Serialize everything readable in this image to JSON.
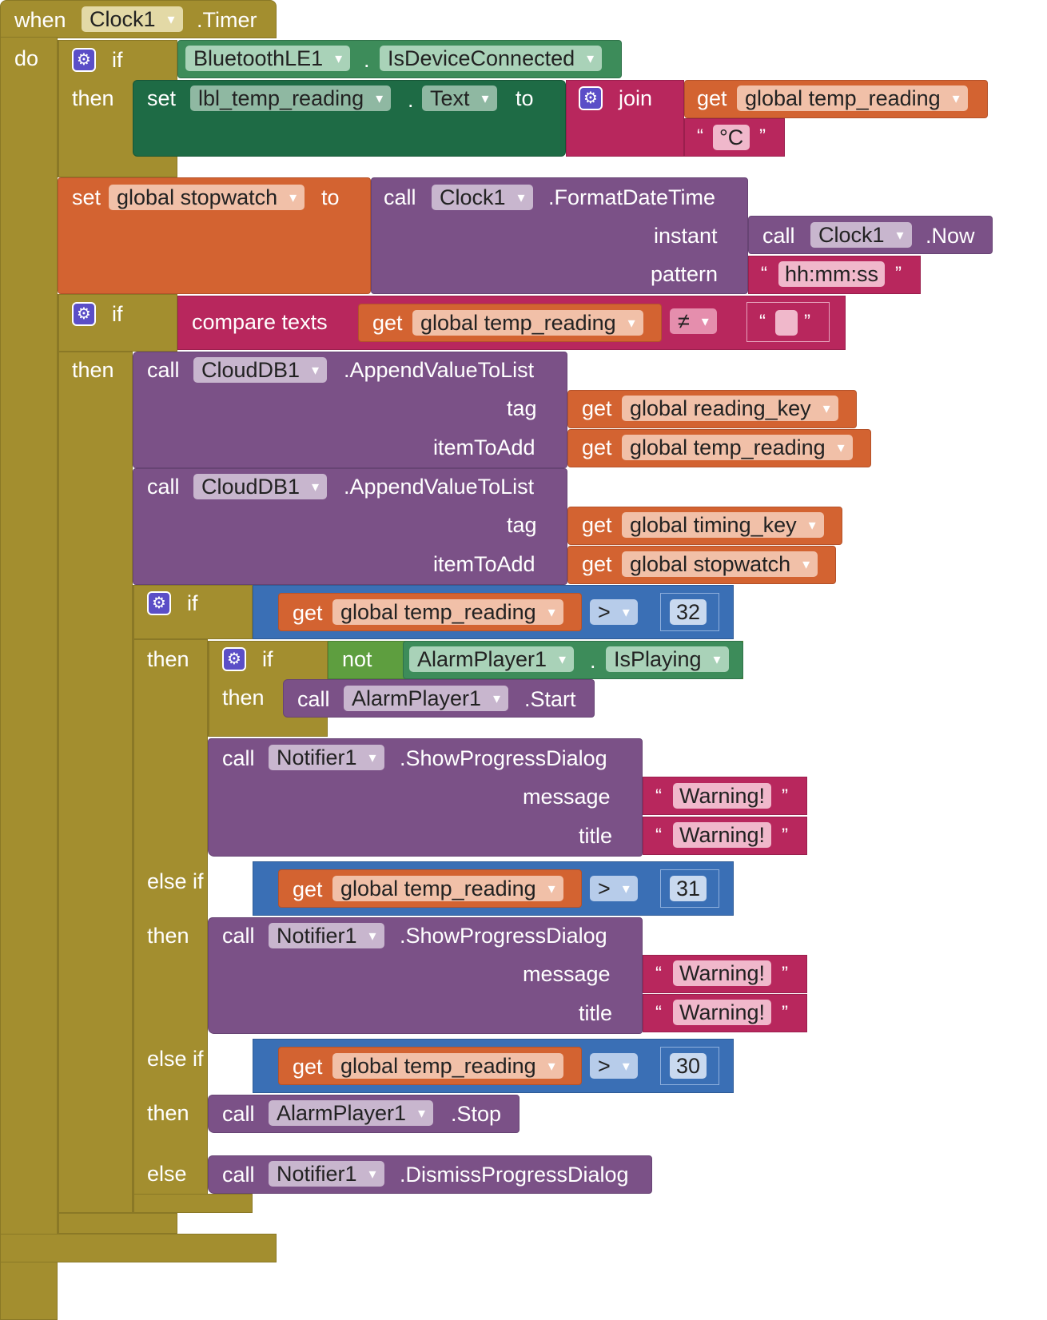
{
  "event": {
    "when": "when",
    "component": "Clock1",
    "event_name": ".Timer",
    "do": "do"
  },
  "kw": {
    "if": "if",
    "then": "then",
    "else_if": "else if",
    "else": "else",
    "set": "set",
    "to": "to",
    "get": "get",
    "call": "call",
    "join": "join",
    "not": "not",
    "compare_texts": "compare texts",
    "dot": ".",
    "open_quote": "“",
    "close_quote": "”",
    "instant": "instant",
    "pattern": "pattern",
    "tag": "tag",
    "item_to_add": "itemToAdd",
    "message": "message",
    "title": "title"
  },
  "block1": {
    "ble_component": "BluetoothLE1",
    "ble_property": "IsDeviceConnected",
    "label_component": "lbl_temp_reading",
    "label_property": "Text",
    "var_temp": "global temp_reading",
    "unit_text": "°C"
  },
  "block2": {
    "var_stopwatch": "global stopwatch",
    "clock": "Clock1",
    "format_method": ".FormatDateTime",
    "now_method": ".Now",
    "pattern_text": "hh:mm:ss"
  },
  "block3": {
    "var_temp": "global temp_reading",
    "operator": "≠",
    "empty_text": "",
    "clouddb": "CloudDB1",
    "append_method": ".AppendValueToList",
    "var_reading_key": "global reading_key",
    "var_timing_key": "global timing_key",
    "var_stopwatch": "global stopwatch"
  },
  "block4": {
    "var_temp": "global temp_reading",
    "op_gt": ">",
    "threshold_1": "32",
    "threshold_2": "31",
    "threshold_3": "30",
    "alarm": "AlarmPlayer1",
    "is_playing": "IsPlaying",
    "start_method": ".Start",
    "stop_method": ".Stop",
    "notifier": "Notifier1",
    "show_dialog_method": ".ShowProgressDialog",
    "dismiss_method": ".DismissProgressDialog",
    "warning_text": "Warning!"
  },
  "gear_icon": "gear-icon",
  "colors": {
    "control": "#A38E2F",
    "variable": "#D36331",
    "procedure": "#7B5187",
    "component_green": "#3D8C5A",
    "setter_green": "#1E6B45",
    "logic": "#5E9E3F",
    "text": "#B8275D",
    "math": "#3A6FB5"
  }
}
